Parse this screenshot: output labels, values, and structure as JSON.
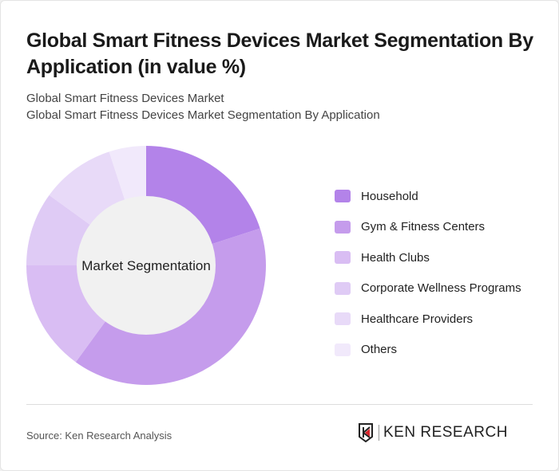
{
  "title": "Global Smart Fitness Devices Market Segmentation By Application (in value %)",
  "subtitle1": "Global Smart Fitness Devices Market",
  "subtitle2": "Global Smart Fitness Devices Market Segmentation By Application",
  "source": "Source: Ken Research Analysis",
  "logo_text": "KEN RESEARCH",
  "chart_data": {
    "type": "pie",
    "donut": true,
    "center_label": "Market Segmentation",
    "legend_position": "right",
    "categories": [
      "Household",
      "Gym & Fitness Centers",
      "Health Clubs",
      "Corporate Wellness Programs",
      "Healthcare Providers",
      "Others"
    ],
    "values": [
      20,
      40,
      15,
      10,
      10,
      5
    ],
    "colors": [
      "#b383e9",
      "#c59cec",
      "#d9bdf3",
      "#dfcbf5",
      "#e8daf8",
      "#f1e9fb"
    ]
  }
}
